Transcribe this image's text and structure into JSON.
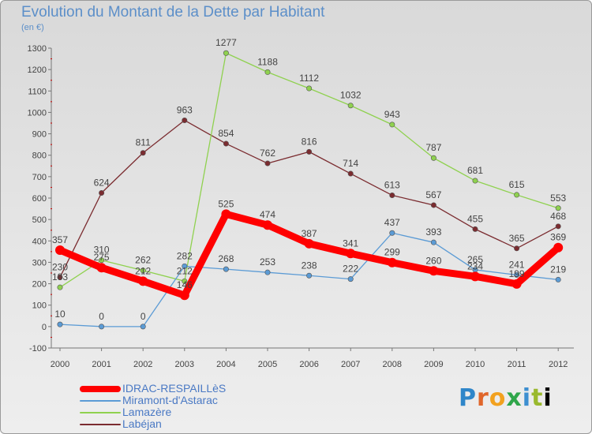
{
  "title": "Evolution du Montant de la Dette par Habitant",
  "subtitle": "(en €)",
  "logo": [
    "P",
    "r",
    "o",
    "x",
    "i",
    "t",
    "i"
  ],
  "chart_data": {
    "type": "line",
    "title": "Evolution du Montant de la Dette par Habitant",
    "subtitle": "(en €)",
    "xlabel": "",
    "ylabel": "",
    "x": [
      "2000",
      "2001",
      "2002",
      "2003",
      "2004",
      "2005",
      "2006",
      "2007",
      "2008",
      "2009",
      "2010",
      "2011",
      "2012"
    ],
    "ylim": [
      -100,
      1300
    ],
    "yticks": [
      -100,
      0,
      100,
      200,
      300,
      400,
      500,
      600,
      700,
      800,
      900,
      1000,
      1100,
      1200,
      1300
    ],
    "grid": false,
    "legend_position": "bottom-left",
    "series": [
      {
        "name": "IDRAC-RESPAILLèS",
        "color": "#ff0000",
        "values": [
          357,
          275,
          212,
          146,
          525,
          474,
          387,
          341,
          299,
          260,
          234,
          199,
          369
        ],
        "labels": [
          "357",
          "275",
          "212",
          "146",
          "525",
          "474",
          "387",
          "341",
          "299",
          "260",
          "234",
          "199",
          "369"
        ]
      },
      {
        "name": "Miramont-d'Astarac",
        "color": "#5b9bd5",
        "values": [
          10,
          0,
          0,
          282,
          268,
          253,
          238,
          222,
          437,
          393,
          265,
          241,
          219
        ],
        "labels": [
          "10",
          "0",
          "0",
          "282",
          "268",
          "253",
          "238",
          "222",
          "437",
          "393",
          "265",
          "241",
          "219"
        ]
      },
      {
        "name": "Lamazère",
        "color": "#8fd14f",
        "values": [
          183,
          310,
          262,
          212,
          1277,
          1188,
          1112,
          1032,
          943,
          787,
          681,
          615,
          553
        ],
        "labels": [
          "183",
          "310",
          "262",
          "212",
          "1277",
          "1188",
          "1112",
          "1032",
          "943",
          "787",
          "681",
          "615",
          "553"
        ]
      },
      {
        "name": "Labéjan",
        "color": "#7b2c30",
        "values": [
          230,
          624,
          811,
          963,
          854,
          762,
          816,
          714,
          613,
          567,
          455,
          365,
          468
        ],
        "labels": [
          "230",
          "624",
          "811",
          "963",
          "854",
          "762",
          "816",
          "714",
          "613",
          "567",
          "455",
          "365",
          "468"
        ]
      }
    ]
  }
}
